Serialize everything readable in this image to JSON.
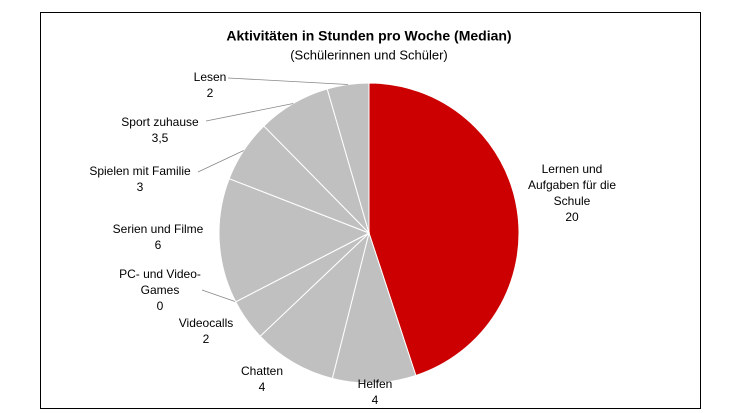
{
  "chart_data": {
    "type": "pie",
    "title": "Aktivitäten in Stunden pro Woche (Median)",
    "subtitle": "(Schülerinnen und Schüler)",
    "categories": [
      "Lernen und\nAufgaben für die\nSchule",
      "Helfen",
      "Chatten",
      "Videocalls",
      "PC- und Video-\nGames",
      "Serien und Filme",
      "Spielen mit Familie",
      "Sport zuhause",
      "Lesen"
    ],
    "values": [
      20,
      4,
      4,
      2,
      0,
      6,
      3,
      3.5,
      2
    ],
    "value_labels": [
      "20",
      "4",
      "4",
      "2",
      "0",
      "6",
      "3",
      "3,5",
      "2"
    ],
    "colors": [
      "#cc0000",
      "#c0c0c0",
      "#c0c0c0",
      "#c0c0c0",
      "#c0c0c0",
      "#c0c0c0",
      "#c0c0c0",
      "#c0c0c0",
      "#c0c0c0"
    ]
  }
}
